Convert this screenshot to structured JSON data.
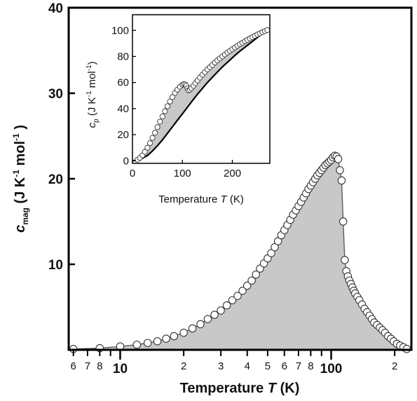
{
  "chart_data": [
    {
      "type": "scatter",
      "panel": "main",
      "x_scale": "log",
      "xlim": [
        5.7,
        240
      ],
      "ylim": [
        0,
        40
      ],
      "xlabel": "Temperature",
      "xlabel_var": "T",
      "xlabel_unit": "(K)",
      "ylabel_symbol": "c",
      "ylabel_sub": "mag",
      "ylabel_unit_a": "(J K",
      "ylabel_unit_exp1": "-1",
      "ylabel_unit_b": " mol",
      "ylabel_unit_exp2": "-1",
      "ylabel_unit_c": " )",
      "y_ticks": [
        {
          "value": 10,
          "label": "10"
        },
        {
          "value": 20,
          "label": "20"
        },
        {
          "value": 30,
          "label": "30"
        },
        {
          "value": 40,
          "label": "40"
        }
      ],
      "x_ticks_major": [
        {
          "value": 10,
          "label": "10"
        },
        {
          "value": 100,
          "label": "100"
        }
      ],
      "x_ticks_minor": [
        {
          "value": 6,
          "label": "6"
        },
        {
          "value": 7,
          "label": "7"
        },
        {
          "value": 8,
          "label": "8"
        },
        {
          "value": 9,
          "label": ""
        },
        {
          "value": 20,
          "label": "2"
        },
        {
          "value": 30,
          "label": "3"
        },
        {
          "value": 40,
          "label": "4"
        },
        {
          "value": 50,
          "label": "5"
        },
        {
          "value": 60,
          "label": "6"
        },
        {
          "value": 70,
          "label": "7"
        },
        {
          "value": 80,
          "label": "8"
        },
        {
          "value": 90,
          "label": ""
        },
        {
          "value": 200,
          "label": "2"
        }
      ],
      "series": [
        {
          "marker": "open-circle",
          "fill_below": "#c8c8c8",
          "x": [
            6,
            8,
            10,
            12,
            13.5,
            15,
            16.5,
            18,
            20,
            22,
            24,
            26,
            28,
            30,
            32,
            34,
            36,
            38,
            40,
            42,
            44,
            46,
            48,
            50,
            52,
            54,
            56,
            58,
            60,
            62,
            64,
            66,
            68,
            70,
            72,
            74,
            76,
            78,
            80,
            82,
            84,
            86,
            88,
            90,
            92,
            94,
            96,
            98,
            100,
            102,
            104,
            106,
            108,
            110,
            112,
            114,
            116,
            118,
            120,
            122,
            124,
            126,
            128,
            130,
            133,
            136,
            140,
            144,
            148,
            152,
            156,
            160,
            165,
            170,
            175,
            180,
            186,
            192,
            198,
            205,
            212,
            220,
            228
          ],
          "y": [
            0.1,
            0.2,
            0.4,
            0.6,
            0.8,
            1.0,
            1.3,
            1.6,
            2.0,
            2.5,
            3.0,
            3.6,
            4.1,
            4.6,
            5.2,
            5.8,
            6.3,
            6.9,
            7.5,
            8.1,
            8.8,
            9.5,
            10.1,
            10.7,
            11.3,
            12.0,
            12.7,
            13.4,
            14.0,
            14.6,
            15.2,
            15.8,
            16.3,
            16.8,
            17.3,
            17.8,
            18.3,
            18.8,
            19.2,
            19.6,
            20.0,
            20.4,
            20.7,
            21.0,
            21.3,
            21.6,
            21.8,
            22.0,
            22.2,
            22.5,
            22.7,
            22.6,
            22.3,
            21.0,
            19.8,
            15.0,
            10.5,
            9.2,
            8.6,
            8.1,
            7.7,
            7.3,
            6.9,
            6.6,
            6.2,
            5.8,
            5.3,
            4.8,
            4.4,
            4.0,
            3.6,
            3.2,
            2.9,
            2.6,
            2.3,
            2.0,
            1.6,
            1.3,
            1.0,
            0.7,
            0.5,
            0.3,
            0.1
          ]
        }
      ]
    },
    {
      "type": "scatter",
      "panel": "inset",
      "xlim": [
        0,
        275
      ],
      "ylim": [
        -2,
        112
      ],
      "xlabel": "Temperature",
      "xlabel_var": "T",
      "xlabel_unit": "(K)",
      "ylabel_symbol": "c",
      "ylabel_sub": "p",
      "ylabel_unit_a": "(J K",
      "ylabel_unit_exp1": "-1",
      "ylabel_unit_b": " mol",
      "ylabel_unit_exp2": "-1",
      "ylabel_unit_c": ")",
      "x_ticks": [
        {
          "value": 0,
          "label": "0"
        },
        {
          "value": 100,
          "label": "100"
        },
        {
          "value": 200,
          "label": "200"
        }
      ],
      "y_ticks": [
        {
          "value": 0,
          "label": "0"
        },
        {
          "value": 20,
          "label": "20"
        },
        {
          "value": 40,
          "label": "40"
        },
        {
          "value": 60,
          "label": "60"
        },
        {
          "value": 80,
          "label": "80"
        },
        {
          "value": 100,
          "label": "100"
        }
      ],
      "series": [
        {
          "marker": "open-circle",
          "x": [
            10,
            15,
            20,
            25,
            30,
            35,
            40,
            45,
            50,
            55,
            60,
            65,
            70,
            75,
            80,
            85,
            90,
            95,
            100,
            103,
            106,
            108,
            110,
            112,
            115,
            118,
            122,
            126,
            130,
            135,
            140,
            145,
            150,
            155,
            160,
            165,
            170,
            175,
            180,
            185,
            190,
            195,
            200,
            205,
            210,
            215,
            220,
            225,
            230,
            235,
            240,
            245,
            250,
            255,
            260,
            265,
            270
          ],
          "y": [
            0.8,
            2.2,
            4.2,
            6.8,
            10.0,
            13.5,
            17.5,
            21.5,
            25.8,
            30.0,
            34.0,
            38.0,
            41.8,
            45.5,
            48.8,
            52.0,
            54.5,
            56.8,
            58.3,
            58.8,
            58.5,
            57.5,
            55.5,
            54.0,
            54.5,
            55.8,
            57.5,
            59.5,
            61.5,
            63.8,
            66.0,
            68.0,
            70.0,
            71.8,
            73.5,
            75.3,
            77.0,
            78.5,
            80.0,
            81.5,
            83.0,
            84.3,
            85.6,
            86.9,
            88.1,
            89.3,
            90.5,
            91.6,
            92.7,
            93.8,
            94.8,
            95.8,
            96.8,
            97.7,
            98.6,
            99.4,
            100.2
          ]
        },
        {
          "marker": "line",
          "x": [
            0,
            10,
            20,
            30,
            40,
            50,
            60,
            70,
            80,
            90,
            100,
            110,
            120,
            130,
            140,
            150,
            160,
            170,
            180,
            190,
            200,
            210,
            220,
            230,
            240,
            250,
            260,
            270
          ],
          "y": [
            0,
            0.5,
            2.0,
            4.0,
            7.5,
            11.5,
            16.0,
            21.0,
            26.0,
            31.0,
            36.0,
            41.0,
            46.0,
            51.0,
            55.5,
            60.0,
            64.0,
            68.0,
            72.0,
            75.5,
            79.0,
            82.5,
            85.5,
            88.5,
            91.5,
            94.5,
            97.5,
            100.0
          ]
        }
      ]
    }
  ]
}
